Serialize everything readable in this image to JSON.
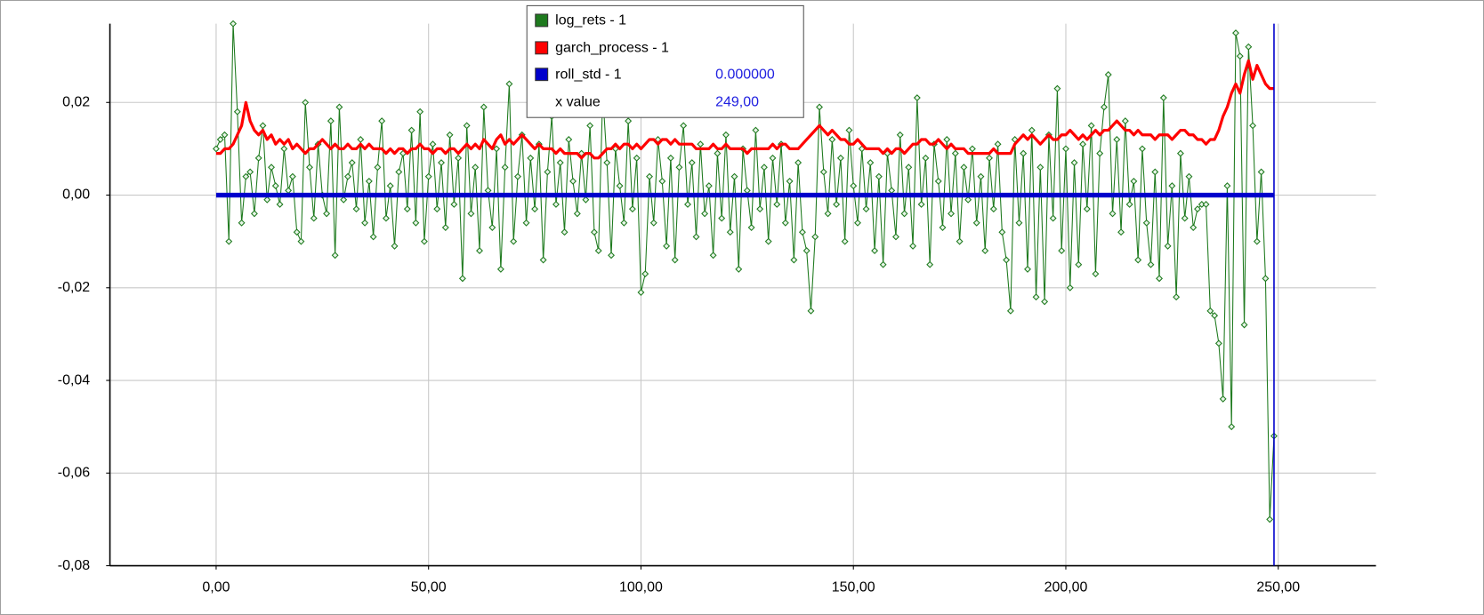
{
  "chart_data": {
    "type": "line",
    "xlim": [
      -25,
      273
    ],
    "ylim": [
      -0.08,
      0.037
    ],
    "xticks": [
      {
        "value": 0,
        "label": "0,00"
      },
      {
        "value": 50,
        "label": "50,00"
      },
      {
        "value": 100,
        "label": "100,00"
      },
      {
        "value": 150,
        "label": "150,00"
      },
      {
        "value": 200,
        "label": "200,00"
      },
      {
        "value": 250,
        "label": "250,00"
      }
    ],
    "yticks": [
      {
        "value": -0.08,
        "label": "-0,08"
      },
      {
        "value": -0.06,
        "label": "-0,06"
      },
      {
        "value": -0.04,
        "label": "-0,04"
      },
      {
        "value": -0.02,
        "label": "-0,02"
      },
      {
        "value": 0,
        "label": "0,00"
      },
      {
        "value": 0.02,
        "label": "0,02"
      }
    ],
    "grid": true,
    "legend": {
      "position": "top",
      "x_label": "x value",
      "x_value": {
        "value": 249,
        "label": "249,00"
      }
    },
    "x": [
      0,
      1,
      2,
      3,
      4,
      5,
      6,
      7,
      8,
      9,
      10,
      11,
      12,
      13,
      14,
      15,
      16,
      17,
      18,
      19,
      20,
      21,
      22,
      23,
      24,
      25,
      26,
      27,
      28,
      29,
      30,
      31,
      32,
      33,
      34,
      35,
      36,
      37,
      38,
      39,
      40,
      41,
      42,
      43,
      44,
      45,
      46,
      47,
      48,
      49,
      50,
      51,
      52,
      53,
      54,
      55,
      56,
      57,
      58,
      59,
      60,
      61,
      62,
      63,
      64,
      65,
      66,
      67,
      68,
      69,
      70,
      71,
      72,
      73,
      74,
      75,
      76,
      77,
      78,
      79,
      80,
      81,
      82,
      83,
      84,
      85,
      86,
      87,
      88,
      89,
      90,
      91,
      92,
      93,
      94,
      95,
      96,
      97,
      98,
      99,
      100,
      101,
      102,
      103,
      104,
      105,
      106,
      107,
      108,
      109,
      110,
      111,
      112,
      113,
      114,
      115,
      116,
      117,
      118,
      119,
      120,
      121,
      122,
      123,
      124,
      125,
      126,
      127,
      128,
      129,
      130,
      131,
      132,
      133,
      134,
      135,
      136,
      137,
      138,
      139,
      140,
      141,
      142,
      143,
      144,
      145,
      146,
      147,
      148,
      149,
      150,
      151,
      152,
      153,
      154,
      155,
      156,
      157,
      158,
      159,
      160,
      161,
      162,
      163,
      164,
      165,
      166,
      167,
      168,
      169,
      170,
      171,
      172,
      173,
      174,
      175,
      176,
      177,
      178,
      179,
      180,
      181,
      182,
      183,
      184,
      185,
      186,
      187,
      188,
      189,
      190,
      191,
      192,
      193,
      194,
      195,
      196,
      197,
      198,
      199,
      200,
      201,
      202,
      203,
      204,
      205,
      206,
      207,
      208,
      209,
      210,
      211,
      212,
      213,
      214,
      215,
      216,
      217,
      218,
      219,
      220,
      221,
      222,
      223,
      224,
      225,
      226,
      227,
      228,
      229,
      230,
      231,
      232,
      233,
      234,
      235,
      236,
      237,
      238,
      239,
      240,
      241,
      242,
      243,
      244,
      245,
      246,
      247,
      248,
      249
    ],
    "series": [
      {
        "name": "log_rets - 1",
        "color": "#1e7a1e",
        "markers": true,
        "values": [
          0.01,
          0.012,
          0.013,
          -0.01,
          0.037,
          0.018,
          -0.006,
          0.004,
          0.005,
          -0.004,
          0.008,
          0.015,
          -0.001,
          0.006,
          0.002,
          -0.002,
          0.01,
          0.001,
          0.004,
          -0.008,
          -0.01,
          0.02,
          0.006,
          -0.005,
          0.011,
          0.0,
          -0.004,
          0.016,
          -0.013,
          0.019,
          -0.001,
          0.004,
          0.007,
          -0.003,
          0.012,
          -0.006,
          0.003,
          -0.009,
          0.006,
          0.016,
          -0.005,
          0.002,
          -0.011,
          0.005,
          0.009,
          -0.003,
          0.014,
          -0.006,
          0.018,
          -0.01,
          0.004,
          0.011,
          -0.003,
          0.007,
          -0.007,
          0.013,
          -0.002,
          0.008,
          -0.018,
          0.015,
          -0.004,
          0.006,
          -0.012,
          0.019,
          0.001,
          -0.007,
          0.01,
          -0.016,
          0.006,
          0.024,
          -0.01,
          0.004,
          0.013,
          -0.006,
          0.008,
          -0.003,
          0.011,
          -0.014,
          0.005,
          0.017,
          -0.002,
          0.007,
          -0.008,
          0.012,
          0.003,
          -0.004,
          0.009,
          -0.001,
          0.015,
          -0.008,
          -0.012,
          0.022,
          0.007,
          -0.013,
          0.01,
          0.002,
          -0.006,
          0.016,
          -0.003,
          0.008,
          -0.021,
          -0.017,
          0.004,
          -0.006,
          0.012,
          0.003,
          -0.011,
          0.008,
          -0.014,
          0.006,
          0.015,
          -0.002,
          0.007,
          -0.009,
          0.011,
          -0.004,
          0.002,
          -0.013,
          0.009,
          -0.005,
          0.013,
          -0.008,
          0.004,
          -0.016,
          0.01,
          0.001,
          -0.007,
          0.014,
          -0.003,
          0.006,
          -0.01,
          0.008,
          -0.002,
          0.011,
          -0.006,
          0.003,
          -0.014,
          0.007,
          -0.008,
          -0.012,
          -0.025,
          -0.009,
          0.019,
          0.005,
          -0.004,
          0.012,
          -0.002,
          0.008,
          -0.01,
          0.014,
          0.002,
          -0.006,
          0.01,
          -0.003,
          0.007,
          -0.012,
          0.004,
          -0.015,
          0.009,
          0.001,
          -0.009,
          0.013,
          -0.004,
          0.006,
          -0.011,
          0.021,
          -0.002,
          0.008,
          -0.015,
          0.011,
          0.003,
          -0.007,
          0.012,
          -0.004,
          0.009,
          -0.01,
          0.006,
          -0.001,
          0.01,
          -0.006,
          0.004,
          -0.012,
          0.008,
          -0.003,
          0.011,
          -0.008,
          -0.014,
          -0.025,
          0.012,
          -0.006,
          0.009,
          -0.016,
          0.014,
          -0.022,
          0.006,
          -0.023,
          0.013,
          -0.005,
          0.023,
          -0.012,
          0.01,
          -0.02,
          0.007,
          -0.015,
          0.011,
          -0.003,
          0.015,
          -0.017,
          0.009,
          0.019,
          0.026,
          -0.004,
          0.012,
          -0.008,
          0.016,
          -0.002,
          0.003,
          -0.014,
          0.01,
          -0.006,
          -0.015,
          0.005,
          -0.018,
          0.021,
          -0.011,
          0.002,
          -0.022,
          0.009,
          -0.005,
          0.004,
          -0.007,
          -0.003,
          -0.002,
          -0.002,
          -0.025,
          -0.026,
          -0.032,
          -0.044,
          0.002,
          -0.05,
          0.035,
          0.03,
          -0.028,
          0.032,
          0.015,
          -0.01,
          0.005,
          -0.018,
          -0.07,
          -0.052
        ]
      },
      {
        "name": "garch_process - 1",
        "color": "#ff0000",
        "markers": false,
        "values": [
          0.009,
          0.009,
          0.01,
          0.01,
          0.011,
          0.013,
          0.015,
          0.02,
          0.016,
          0.014,
          0.013,
          0.014,
          0.012,
          0.013,
          0.011,
          0.012,
          0.011,
          0.012,
          0.01,
          0.011,
          0.01,
          0.009,
          0.01,
          0.01,
          0.011,
          0.012,
          0.011,
          0.01,
          0.011,
          0.01,
          0.01,
          0.011,
          0.01,
          0.01,
          0.011,
          0.01,
          0.011,
          0.01,
          0.01,
          0.01,
          0.009,
          0.01,
          0.009,
          0.01,
          0.01,
          0.009,
          0.01,
          0.01,
          0.011,
          0.01,
          0.01,
          0.009,
          0.01,
          0.01,
          0.009,
          0.01,
          0.01,
          0.009,
          0.01,
          0.011,
          0.01,
          0.011,
          0.01,
          0.012,
          0.011,
          0.01,
          0.012,
          0.013,
          0.011,
          0.012,
          0.011,
          0.012,
          0.013,
          0.012,
          0.011,
          0.01,
          0.011,
          0.01,
          0.01,
          0.01,
          0.009,
          0.01,
          0.009,
          0.009,
          0.009,
          0.009,
          0.008,
          0.009,
          0.009,
          0.008,
          0.008,
          0.009,
          0.01,
          0.01,
          0.011,
          0.01,
          0.011,
          0.011,
          0.01,
          0.011,
          0.01,
          0.011,
          0.012,
          0.012,
          0.011,
          0.012,
          0.012,
          0.011,
          0.012,
          0.011,
          0.011,
          0.011,
          0.011,
          0.01,
          0.01,
          0.01,
          0.01,
          0.011,
          0.01,
          0.01,
          0.011,
          0.01,
          0.01,
          0.01,
          0.01,
          0.009,
          0.01,
          0.01,
          0.01,
          0.01,
          0.01,
          0.011,
          0.01,
          0.011,
          0.011,
          0.01,
          0.01,
          0.01,
          0.011,
          0.012,
          0.013,
          0.014,
          0.015,
          0.014,
          0.013,
          0.014,
          0.013,
          0.012,
          0.012,
          0.011,
          0.011,
          0.012,
          0.011,
          0.01,
          0.01,
          0.01,
          0.01,
          0.009,
          0.01,
          0.009,
          0.01,
          0.01,
          0.009,
          0.01,
          0.011,
          0.011,
          0.012,
          0.012,
          0.011,
          0.011,
          0.012,
          0.011,
          0.01,
          0.011,
          0.01,
          0.01,
          0.01,
          0.009,
          0.009,
          0.009,
          0.009,
          0.009,
          0.009,
          0.01,
          0.009,
          0.009,
          0.009,
          0.009,
          0.011,
          0.012,
          0.013,
          0.012,
          0.013,
          0.012,
          0.011,
          0.012,
          0.013,
          0.012,
          0.012,
          0.013,
          0.013,
          0.014,
          0.013,
          0.012,
          0.013,
          0.012,
          0.013,
          0.014,
          0.013,
          0.014,
          0.014,
          0.015,
          0.016,
          0.015,
          0.014,
          0.014,
          0.013,
          0.014,
          0.013,
          0.013,
          0.013,
          0.012,
          0.013,
          0.013,
          0.013,
          0.012,
          0.013,
          0.014,
          0.014,
          0.013,
          0.013,
          0.012,
          0.012,
          0.011,
          0.012,
          0.012,
          0.014,
          0.017,
          0.019,
          0.022,
          0.024,
          0.022,
          0.026,
          0.029,
          0.025,
          0.028,
          0.026,
          0.024,
          0.023,
          0.023
        ]
      },
      {
        "name": "roll_std - 1",
        "color": "#0000cc",
        "markers": false,
        "legend_value": "0.000000",
        "values": [
          0,
          0,
          0,
          0,
          0,
          0,
          0,
          0,
          0,
          0,
          0,
          0,
          0,
          0,
          0,
          0,
          0,
          0,
          0,
          0,
          0,
          0,
          0,
          0,
          0,
          0,
          0,
          0,
          0,
          0,
          0,
          0,
          0,
          0,
          0,
          0,
          0,
          0,
          0,
          0,
          0,
          0,
          0,
          0,
          0,
          0,
          0,
          0,
          0,
          0,
          0,
          0,
          0,
          0,
          0,
          0,
          0,
          0,
          0,
          0,
          0,
          0,
          0,
          0,
          0,
          0,
          0,
          0,
          0,
          0,
          0,
          0,
          0,
          0,
          0,
          0,
          0,
          0,
          0,
          0,
          0,
          0,
          0,
          0,
          0,
          0,
          0,
          0,
          0,
          0,
          0,
          0,
          0,
          0,
          0,
          0,
          0,
          0,
          0,
          0,
          0,
          0,
          0,
          0,
          0,
          0,
          0,
          0,
          0,
          0,
          0,
          0,
          0,
          0,
          0,
          0,
          0,
          0,
          0,
          0,
          0,
          0,
          0,
          0,
          0,
          0,
          0,
          0,
          0,
          0,
          0,
          0,
          0,
          0,
          0,
          0,
          0,
          0,
          0,
          0,
          0,
          0,
          0,
          0,
          0,
          0,
          0,
          0,
          0,
          0,
          0,
          0,
          0,
          0,
          0,
          0,
          0,
          0,
          0,
          0,
          0,
          0,
          0,
          0,
          0,
          0,
          0,
          0,
          0,
          0,
          0,
          0,
          0,
          0,
          0,
          0,
          0,
          0,
          0,
          0,
          0,
          0,
          0,
          0,
          0,
          0,
          0,
          0,
          0,
          0,
          0,
          0,
          0,
          0,
          0,
          0,
          0,
          0,
          0,
          0,
          0,
          0,
          0,
          0,
          0,
          0,
          0,
          0,
          0,
          0,
          0,
          0,
          0,
          0,
          0,
          0,
          0,
          0,
          0,
          0,
          0,
          0,
          0,
          0,
          0,
          0,
          0,
          0,
          0,
          0,
          0,
          0,
          0,
          0,
          0,
          0,
          0,
          0,
          0,
          0,
          0,
          0,
          0,
          0,
          0,
          0,
          0,
          0,
          0,
          0
        ]
      }
    ]
  }
}
